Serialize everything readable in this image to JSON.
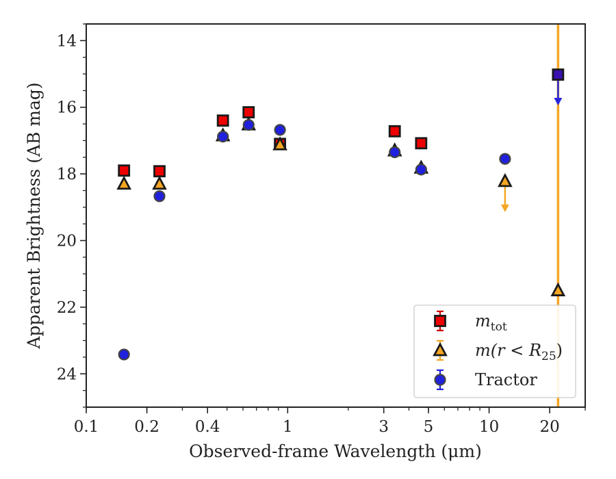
{
  "chart_data": {
    "type": "scatter",
    "xlabel": "Observed-frame Wavelength (μm)",
    "ylabel": "Apparent Brightness (AB mag)",
    "xscale": "log",
    "xlim": [
      0.1,
      30
    ],
    "ylim": [
      25.0,
      13.5
    ],
    "y_inverted": true,
    "grid": false,
    "legend_position": "bottom-right",
    "x_ticks": [
      {
        "value": 0.1,
        "label": "0.1"
      },
      {
        "value": 0.2,
        "label": "0.2"
      },
      {
        "value": 0.4,
        "label": "0.4"
      },
      {
        "value": 1,
        "label": "1"
      },
      {
        "value": 3,
        "label": "3"
      },
      {
        "value": 5,
        "label": "5"
      },
      {
        "value": 10,
        "label": "10"
      },
      {
        "value": 20,
        "label": "20"
      }
    ],
    "y_ticks": [
      {
        "value": 14,
        "label": "14"
      },
      {
        "value": 16,
        "label": "16"
      },
      {
        "value": 18,
        "label": "18"
      },
      {
        "value": 20,
        "label": "20"
      },
      {
        "value": 22,
        "label": "22"
      },
      {
        "value": 24,
        "label": "24"
      }
    ],
    "vertical_line": {
      "x": 22,
      "color": "#f5a623"
    },
    "series": [
      {
        "name": "m_tot",
        "legend_main": "m",
        "legend_sub": "tot",
        "marker": "square",
        "fill": "#ee0000",
        "edge": "#1a1a1a",
        "errcolor": "#cc0000",
        "points": [
          {
            "x": 0.154,
            "y": 17.9
          },
          {
            "x": 0.231,
            "y": 17.92
          },
          {
            "x": 0.477,
            "y": 16.4
          },
          {
            "x": 0.64,
            "y": 16.15
          },
          {
            "x": 0.916,
            "y": 17.1
          },
          {
            "x": 3.4,
            "y": 16.72
          },
          {
            "x": 4.6,
            "y": 17.08
          },
          {
            "x": 22,
            "y": 15.02,
            "upper_limit": true,
            "arrow_color": "#2525dd",
            "fill": "#3a10b0"
          }
        ]
      },
      {
        "name": "m(r < R25)",
        "legend_main": "m(r < R",
        "legend_sub": "25",
        "legend_tail": ")",
        "marker": "triangle",
        "fill": "#f5a623",
        "edge": "#1a1a1a",
        "errcolor": "#f5a623",
        "points": [
          {
            "x": 0.154,
            "y": 18.3
          },
          {
            "x": 0.231,
            "y": 18.3
          },
          {
            "x": 0.477,
            "y": 16.85
          },
          {
            "x": 0.64,
            "y": 16.52
          },
          {
            "x": 0.916,
            "y": 17.12
          },
          {
            "x": 3.4,
            "y": 17.3
          },
          {
            "x": 4.6,
            "y": 17.82
          },
          {
            "x": 12,
            "y": 18.22,
            "upper_limit": true,
            "arrow_color": "#f5a623"
          },
          {
            "x": 22,
            "y": 21.5
          }
        ]
      },
      {
        "name": "Tractor",
        "legend_main": "Tractor",
        "marker": "circle",
        "fill": "#2020dd",
        "edge": "#444444",
        "errcolor": "#2020dd",
        "points": [
          {
            "x": 0.154,
            "y": 23.42
          },
          {
            "x": 0.231,
            "y": 18.67
          },
          {
            "x": 0.477,
            "y": 16.88
          },
          {
            "x": 0.64,
            "y": 16.53
          },
          {
            "x": 0.916,
            "y": 16.68
          },
          {
            "x": 3.4,
            "y": 17.35
          },
          {
            "x": 4.6,
            "y": 17.87
          },
          {
            "x": 12,
            "y": 17.55
          }
        ]
      }
    ]
  }
}
